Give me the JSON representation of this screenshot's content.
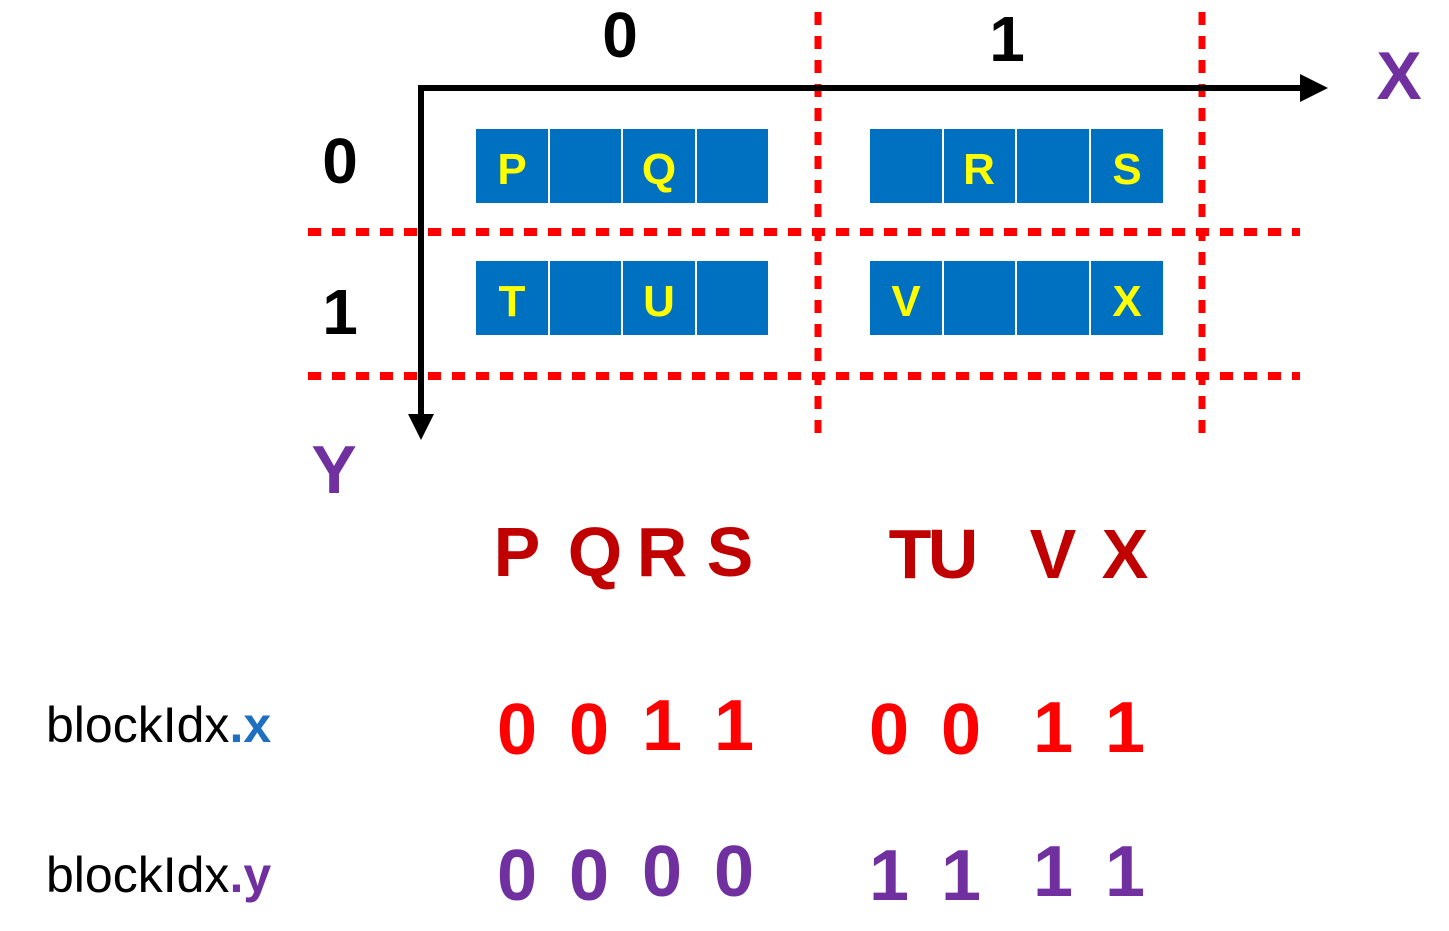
{
  "axes": {
    "x_label": "X",
    "y_label": "Y",
    "col_indices": [
      "0",
      "1"
    ],
    "row_indices": [
      "0",
      "1"
    ]
  },
  "blocks": [
    {
      "cells": [
        "P",
        "",
        "Q",
        ""
      ]
    },
    {
      "cells": [
        "",
        "R",
        "",
        "S"
      ]
    },
    {
      "cells": [
        "T",
        "",
        "U",
        ""
      ]
    },
    {
      "cells": [
        "V",
        "",
        "",
        "X"
      ]
    }
  ],
  "sequence": {
    "group1": [
      "P",
      "Q",
      "R",
      "S"
    ],
    "group2": [
      "T",
      "U",
      "V",
      "X"
    ]
  },
  "blockIdx_x": {
    "prefix": "blockIdx",
    "suffix": ".x",
    "group1": [
      "0",
      "0",
      "1",
      "1"
    ],
    "group2": [
      "0",
      "0",
      "1",
      "1"
    ]
  },
  "blockIdx_y": {
    "prefix": "blockIdx",
    "suffix": ".y",
    "group1": [
      "0",
      "0",
      "0",
      "0"
    ],
    "group2": [
      "1",
      "1",
      "1",
      "1"
    ]
  },
  "colors": {
    "cell_fill": "#0070c0",
    "cell_text": "#ffff00",
    "grid_dash": "#ff0000",
    "axis_label": "#7030a0",
    "sequence_text": "#c00000",
    "x_values": "#ff0000",
    "y_values": "#7030a0",
    "x_suffix": "#1f6fc0"
  }
}
